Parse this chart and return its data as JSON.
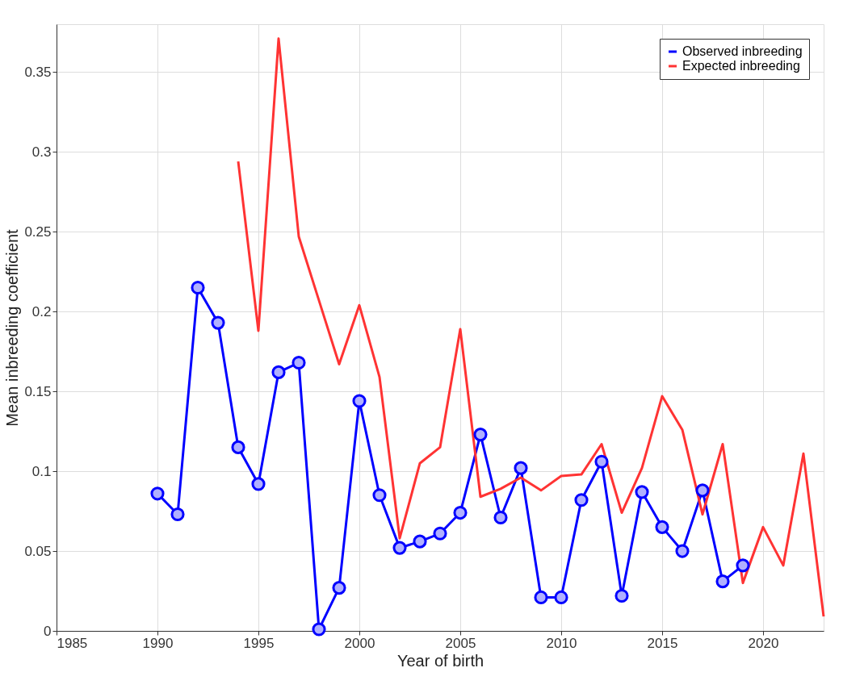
{
  "chart_data": {
    "type": "line",
    "xlabel": "Year of birth",
    "ylabel": "Mean inbreeding coefficient",
    "xlim": [
      1985,
      2023
    ],
    "xticks": [
      1985,
      1990,
      1995,
      2000,
      2005,
      2010,
      2015,
      2020
    ],
    "ylim": [
      0,
      0.38
    ],
    "yticks": [
      0,
      0.05,
      0.1,
      0.15,
      0.2,
      0.25,
      0.3,
      0.35
    ],
    "grid": true,
    "legend": "top right",
    "line_style": "solid",
    "series": [
      {
        "name": "Observed inbreeding",
        "color": "#0000ff",
        "marker": "circle",
        "x": [
          1990,
          1991,
          1992,
          1993,
          1994,
          1995,
          1996,
          1997,
          1998,
          1999,
          2000,
          2001,
          2002,
          2003,
          2004,
          2005,
          2006,
          2007,
          2008,
          2009,
          2010,
          2011,
          2012,
          2013,
          2014,
          2015,
          2016,
          2017,
          2018,
          2019
        ],
        "values": [
          0.086,
          0.073,
          0.215,
          0.193,
          0.115,
          0.092,
          0.162,
          0.168,
          0.001,
          0.027,
          0.144,
          0.085,
          0.052,
          0.056,
          0.061,
          0.074,
          0.123,
          0.071,
          0.102,
          0.021,
          0.021,
          0.082,
          0.106,
          0.022,
          0.087,
          0.065,
          0.05,
          0.088,
          0.031,
          0.041
        ]
      },
      {
        "name": "Expected inbreeding",
        "color": "#ff3333",
        "marker": "none",
        "x": [
          1994,
          1995,
          1996,
          1997,
          1998,
          1999,
          2000,
          2001,
          2002,
          2003,
          2004,
          2005,
          2006,
          2007,
          2008,
          2009,
          2010,
          2011,
          2012,
          2013,
          2014,
          2015,
          2016,
          2017,
          2018,
          2019,
          2020,
          2021,
          2022,
          2023
        ],
        "values": [
          0.294,
          0.188,
          0.371,
          0.247,
          0.207,
          0.167,
          0.204,
          0.159,
          0.058,
          0.105,
          0.115,
          0.189,
          0.084,
          0.089,
          0.096,
          0.088,
          0.097,
          0.098,
          0.117,
          0.074,
          0.102,
          0.147,
          0.126,
          0.073,
          0.117,
          0.03,
          0.065,
          0.041,
          0.111,
          0.009
        ]
      }
    ]
  }
}
